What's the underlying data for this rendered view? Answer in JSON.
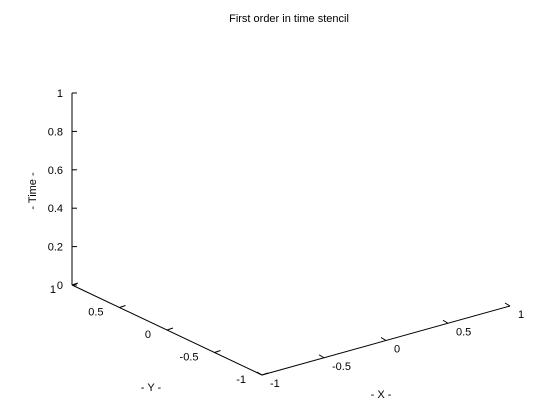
{
  "chart_data": {
    "type": "line",
    "projection": "3d",
    "title": "First order in time stencil",
    "xlabel": "- X -",
    "ylabel": "- Y -",
    "zlabel": "- Time -",
    "xlim": [
      -1,
      1
    ],
    "ylim": [
      -1,
      1
    ],
    "zlim": [
      0,
      1
    ],
    "x_ticks": [
      "-1",
      "-0.5",
      "0",
      "0.5",
      "1"
    ],
    "y_ticks": [
      "-1",
      "-0.5",
      "0",
      "0.5",
      "1"
    ],
    "z_ticks": [
      "0",
      "0.2",
      "0.4",
      "0.6",
      "0.8",
      "1"
    ],
    "grid": false,
    "series": []
  }
}
